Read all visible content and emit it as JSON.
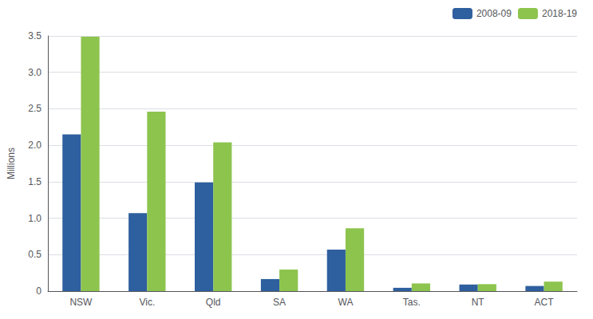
{
  "chart_data": {
    "type": "bar",
    "ylabel": "Millions",
    "categories": [
      "NSW",
      "Vic.",
      "Qld",
      "SA",
      "WA",
      "Tas.",
      "NT",
      "ACT"
    ],
    "series": [
      {
        "name": "2008-09",
        "color": "#2e5f9e",
        "values": [
          2.15,
          1.07,
          1.49,
          0.165,
          0.57,
          0.045,
          0.09,
          0.07
        ]
      },
      {
        "name": "2018-19",
        "color": "#8dc44e",
        "values": [
          3.49,
          2.46,
          2.04,
          0.295,
          0.86,
          0.105,
          0.095,
          0.13
        ]
      }
    ],
    "ylim": [
      0,
      3.5
    ],
    "yticks": [
      0,
      0.5,
      {
        "value": 1.0,
        "label": "1.0"
      },
      1.5,
      {
        "value": 2.0,
        "label": "2.0"
      },
      2.5,
      {
        "value": 3.0,
        "label": "3.0"
      },
      3.5
    ],
    "grid": true,
    "legend": "upper right"
  }
}
